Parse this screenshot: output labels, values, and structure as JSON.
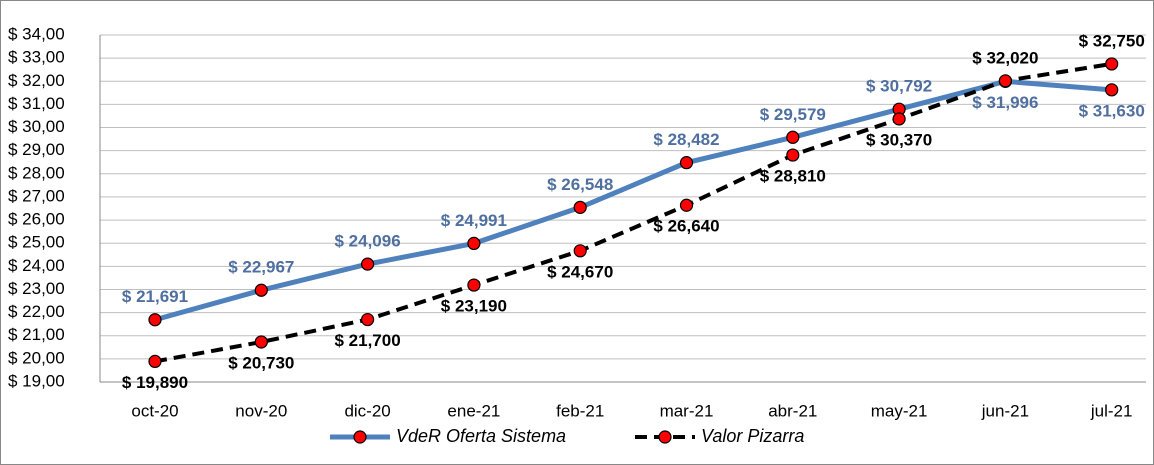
{
  "chart_data": {
    "type": "line",
    "categories": [
      "oct-20",
      "nov-20",
      "dic-20",
      "ene-21",
      "feb-21",
      "mar-21",
      "abr-21",
      "may-21",
      "jun-21",
      "jul-21"
    ],
    "series": [
      {
        "name": "VdeR Oferta Sistema",
        "color": "#4f81bd",
        "dashed": false,
        "values": [
          21.691,
          22.967,
          24.096,
          24.991,
          26.548,
          28.482,
          29.579,
          30.792,
          31.996,
          31.63
        ],
        "value_labels": [
          "$ 21,691",
          "$ 22,967",
          "$ 24,096",
          "$ 24,991",
          "$ 26,548",
          "$ 28,482",
          "$ 29,579",
          "$ 30,792",
          "$ 31,996",
          "$ 31,630"
        ]
      },
      {
        "name": "Valor Pizarra",
        "color": "#000000",
        "dashed": true,
        "values": [
          19.89,
          20.73,
          21.7,
          23.19,
          24.67,
          26.64,
          28.81,
          30.37,
          32.02,
          32.75
        ],
        "value_labels": [
          "$ 19,890",
          "$ 20,730",
          "$ 21,700",
          "$ 23,190",
          "$ 24,670",
          "$ 26,640",
          "$ 28,810",
          "$ 30,370",
          "$ 32,020",
          "$ 32,750"
        ]
      }
    ],
    "ylim": [
      19,
      34
    ],
    "yticks": [
      {
        "value": 19,
        "label": "$ 19,00"
      },
      {
        "value": 20,
        "label": "$ 20,00"
      },
      {
        "value": 21,
        "label": "$ 21,00"
      },
      {
        "value": 22,
        "label": "$ 22,00"
      },
      {
        "value": 23,
        "label": "$ 23,00"
      },
      {
        "value": 24,
        "label": "$ 24,00"
      },
      {
        "value": 25,
        "label": "$ 25,00"
      },
      {
        "value": 26,
        "label": "$ 26,00"
      },
      {
        "value": 27,
        "label": "$ 27,00"
      },
      {
        "value": 28,
        "label": "$ 28,00"
      },
      {
        "value": 29,
        "label": "$ 29,00"
      },
      {
        "value": 30,
        "label": "$ 30,00"
      },
      {
        "value": 31,
        "label": "$ 31,00"
      },
      {
        "value": 32,
        "label": "$ 32,00"
      },
      {
        "value": 33,
        "label": "$ 33,00"
      },
      {
        "value": 34,
        "label": "$ 34,00"
      }
    ],
    "grid": true,
    "legend": "bottom",
    "marker_color": "#ff0000"
  }
}
